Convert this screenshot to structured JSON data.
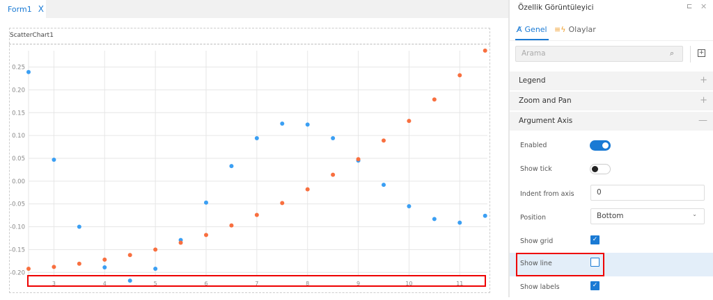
{
  "tabs": [
    {
      "label": "Form1",
      "close": "X"
    }
  ],
  "chart": {
    "name": "ScatterChart1"
  },
  "chart_data": {
    "type": "scatter",
    "title": "",
    "xlabel": "",
    "ylabel": "",
    "xlim": [
      2.5,
      11.6
    ],
    "ylim": [
      -0.227,
      0.298
    ],
    "xticks": [
      3,
      4,
      5,
      6,
      7,
      8,
      9,
      10,
      11
    ],
    "yticks": [
      0.25,
      0.2,
      0.15,
      0.1,
      0.05,
      0.0,
      -0.05,
      -0.1,
      -0.15,
      -0.2
    ],
    "ytick_labels": [
      "0.25",
      "0.20",
      "0.15",
      "0.10",
      "0.05",
      "0.00",
      "-0.05",
      "-0.10",
      "-0.15",
      "-0.20"
    ],
    "grid": true,
    "legend": "none",
    "x": [
      2.5,
      3,
      3.5,
      4,
      4.5,
      5,
      5.5,
      6,
      6.5,
      7,
      7.5,
      8,
      8.5,
      9,
      9.5,
      10,
      10.5,
      11,
      11.5
    ],
    "series": [
      {
        "color": "#3b9ff3",
        "values": [
          0.239,
          0.047,
          -0.1,
          -0.189,
          -0.218,
          -0.192,
          -0.129,
          -0.047,
          0.033,
          0.094,
          0.126,
          0.124,
          0.094,
          0.045,
          -0.008,
          -0.055,
          -0.083,
          -0.091,
          -0.076
        ]
      },
      {
        "color": "#f86f3f",
        "values": [
          -0.192,
          -0.188,
          -0.181,
          -0.172,
          -0.162,
          -0.15,
          -0.135,
          -0.118,
          -0.097,
          -0.074,
          -0.048,
          -0.018,
          0.014,
          0.048,
          0.089,
          0.132,
          0.179,
          0.232,
          0.286
        ]
      }
    ]
  },
  "panel": {
    "title": "Özellik Görüntüleyici",
    "pin_icon": "pin-icon",
    "close_icon": "close-icon",
    "tabs": [
      {
        "label": "Genel",
        "icon": "text-edit-icon"
      },
      {
        "label": "Olaylar",
        "icon": "lightning-list-icon"
      }
    ],
    "search_placeholder": "Arama",
    "sections": [
      {
        "label": "Legend",
        "sign": "+"
      },
      {
        "label": "Zoom and Pan",
        "sign": "+"
      },
      {
        "label": "Argument Axis",
        "sign": "—"
      }
    ],
    "props": {
      "enabled": {
        "label": "Enabled",
        "value": true
      },
      "show_tick": {
        "label": "Show tick",
        "value": false
      },
      "indent": {
        "label": "Indent from axis",
        "value": "0"
      },
      "position": {
        "label": "Position",
        "value": "Bottom"
      },
      "show_grid": {
        "label": "Show grid",
        "value": true
      },
      "show_line": {
        "label": "Show line",
        "value": false
      },
      "show_labels": {
        "label": "Show labels",
        "value": true
      }
    },
    "check": "✓"
  }
}
